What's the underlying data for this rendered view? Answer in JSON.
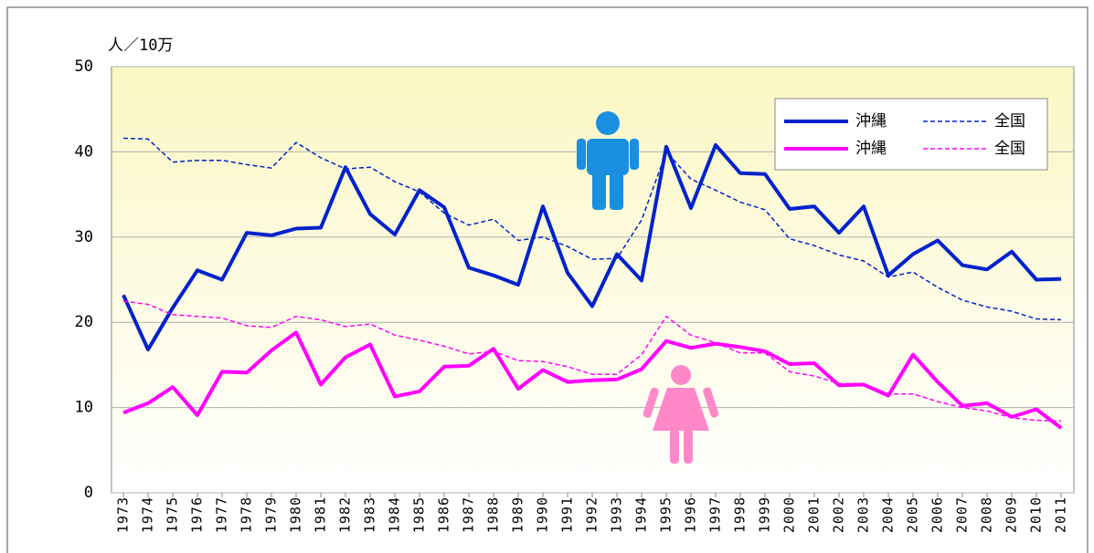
{
  "chart_data": {
    "type": "line",
    "y_label": "人／10万",
    "categories": [
      "1973",
      "1974",
      "1975",
      "1976",
      "1977",
      "1978",
      "1979",
      "1980",
      "1981",
      "1982",
      "1983",
      "1984",
      "1985",
      "1986",
      "1987",
      "1988",
      "1989",
      "1990",
      "1991",
      "1992",
      "1993",
      "1994",
      "1995",
      "1996",
      "1997",
      "1998",
      "1999",
      "2000",
      "2001",
      "2002",
      "2003",
      "2004",
      "2005",
      "2006",
      "2007",
      "2008",
      "2009",
      "2010",
      "2011"
    ],
    "series": [
      {
        "name": "沖縄",
        "color": "#0022cc",
        "style": "solid",
        "values": [
          23.2,
          16.8,
          21.7,
          26.1,
          25.0,
          30.5,
          30.2,
          31.0,
          31.1,
          38.2,
          32.7,
          30.3,
          35.5,
          33.5,
          26.4,
          25.5,
          24.4,
          33.6,
          25.8,
          21.9,
          28.0,
          24.9,
          40.6,
          33.4,
          40.8,
          37.5,
          37.4,
          33.3,
          33.6,
          30.5,
          33.6,
          25.5,
          28.0,
          29.6,
          26.7,
          26.2,
          28.3,
          25.0,
          25.1
        ]
      },
      {
        "name": "全国",
        "color": "#0022cc",
        "style": "dashed",
        "values": [
          41.6,
          41.5,
          38.8,
          39.0,
          39.0,
          38.5,
          38.1,
          41.1,
          39.3,
          38.0,
          38.2,
          36.5,
          35.3,
          32.8,
          31.4,
          32.1,
          29.6,
          30.0,
          28.9,
          27.4,
          27.5,
          32.0,
          40.0,
          36.8,
          35.5,
          34.1,
          33.2,
          29.8,
          29.0,
          27.9,
          27.2,
          25.3,
          25.9,
          24.1,
          22.6,
          21.8,
          21.3,
          20.4,
          20.3
        ]
      },
      {
        "name": "沖縄",
        "color": "#ff00ff",
        "style": "solid",
        "values": [
          9.4,
          10.5,
          12.4,
          9.1,
          14.2,
          14.1,
          16.7,
          18.8,
          12.7,
          15.9,
          17.4,
          11.3,
          11.9,
          14.8,
          14.9,
          16.9,
          12.2,
          14.4,
          13.0,
          13.2,
          13.3,
          14.5,
          17.8,
          17.0,
          17.5,
          17.1,
          16.6,
          15.1,
          15.2,
          12.6,
          12.7,
          11.4,
          16.2,
          13.0,
          10.2,
          10.5,
          8.9,
          9.8,
          7.6
        ]
      },
      {
        "name": "全国",
        "color": "#ff00ff",
        "style": "dashed",
        "values": [
          22.5,
          22.1,
          20.9,
          20.7,
          20.5,
          19.6,
          19.4,
          20.7,
          20.3,
          19.5,
          19.8,
          18.5,
          17.9,
          17.2,
          16.3,
          16.6,
          15.5,
          15.4,
          14.8,
          13.9,
          13.9,
          16.2,
          20.7,
          18.5,
          17.6,
          16.4,
          16.4,
          14.2,
          13.7,
          12.8,
          12.8,
          11.6,
          11.6,
          10.7,
          10.0,
          9.6,
          8.8,
          8.5,
          8.4
        ]
      }
    ],
    "ylim": [
      0,
      50
    ],
    "yticks": [
      0,
      10,
      20,
      30,
      40,
      50
    ],
    "grid": true,
    "legend": "top-right"
  }
}
